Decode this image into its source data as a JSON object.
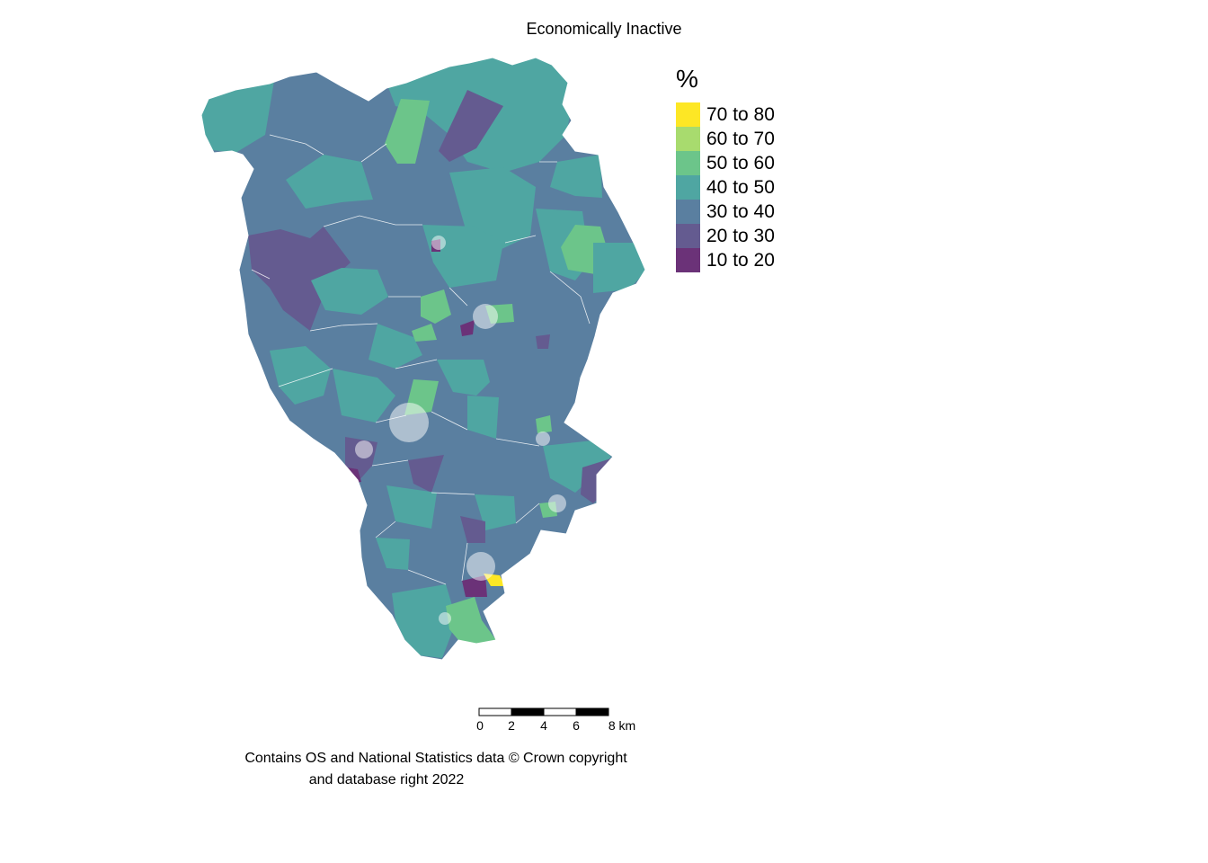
{
  "title": "Economically Inactive",
  "legend": {
    "title": "%",
    "items": [
      {
        "label": "70 to 80",
        "color": "#fde725"
      },
      {
        "label": "60 to 70",
        "color": "#a8db6e"
      },
      {
        "label": "50 to 60",
        "color": "#6cc58a"
      },
      {
        "label": "40 to 50",
        "color": "#4fa6a2"
      },
      {
        "label": "30 to 40",
        "color": "#5a7fa0"
      },
      {
        "label": "20 to 30",
        "color": "#645b90"
      },
      {
        "label": "10 to 20",
        "color": "#6b3278"
      }
    ]
  },
  "scalebar": {
    "labels": [
      "0",
      "2",
      "4",
      "6",
      "8 km"
    ]
  },
  "credit": {
    "line1": "Contains OS and National Statistics data © Crown copyright",
    "line2": "and database right 2022"
  }
}
